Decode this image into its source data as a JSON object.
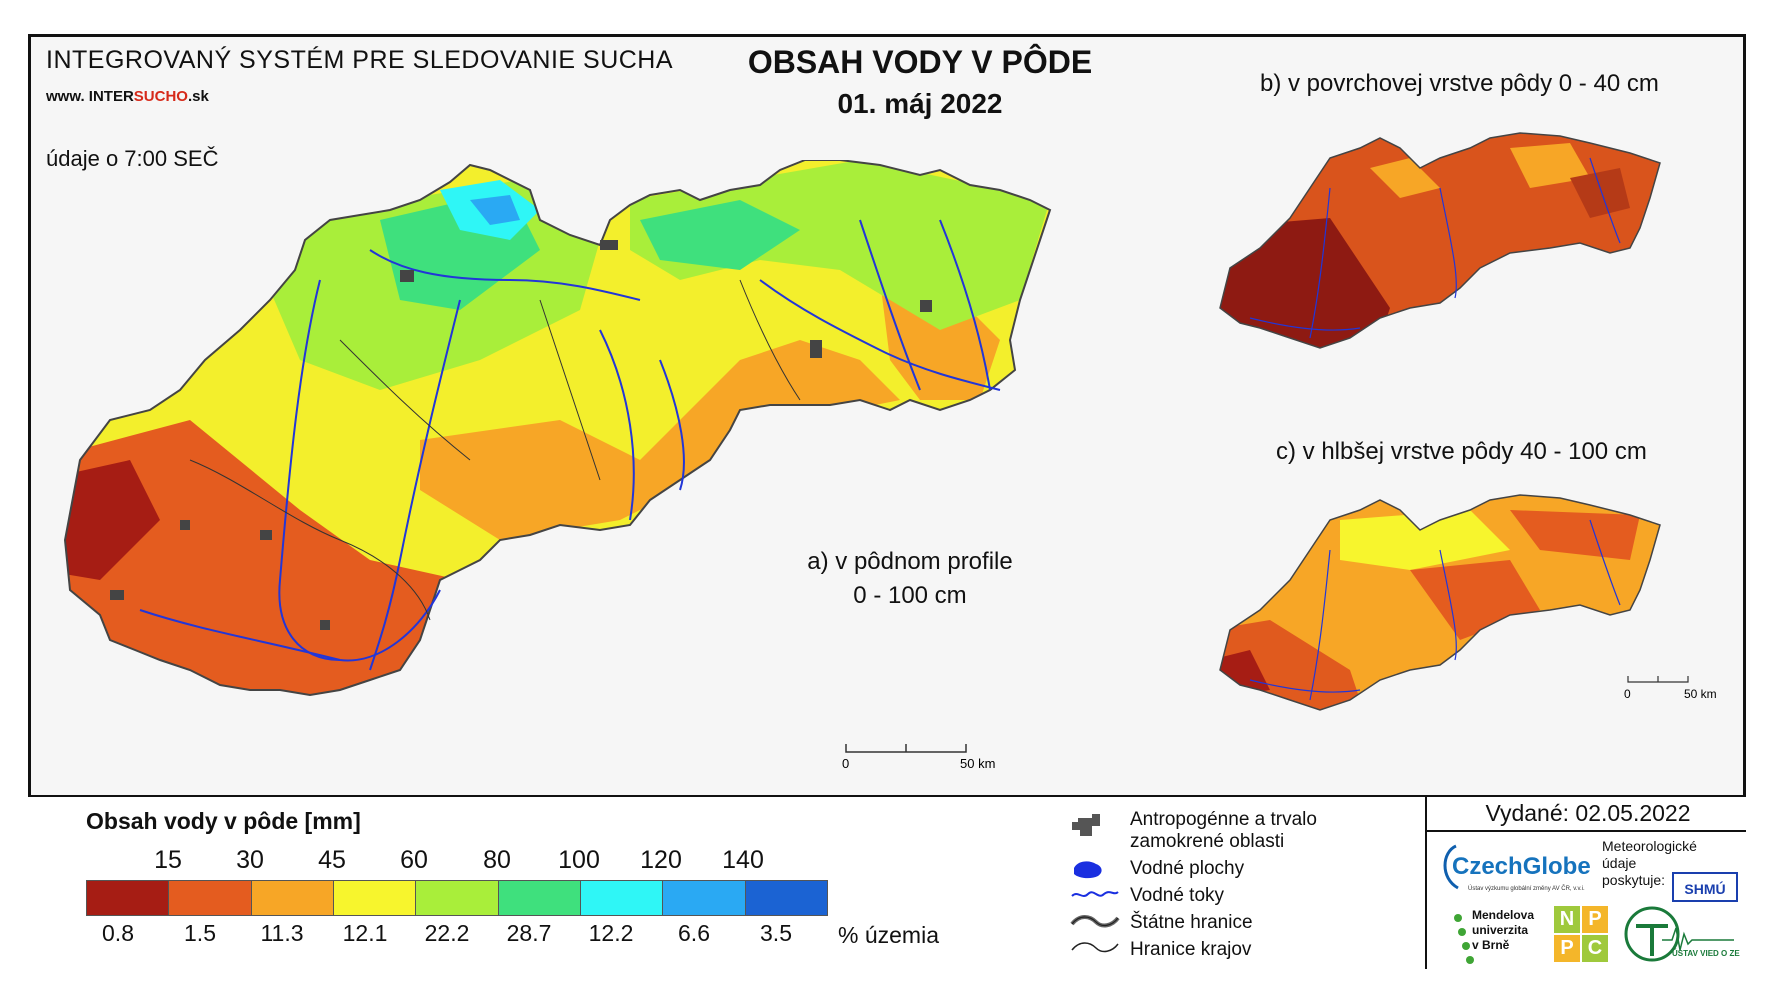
{
  "header": {
    "system_title": "INTEGROVANÝ SYSTÉM PRE SLEDOVANIE SUCHA",
    "website_prefix": "www. INTER",
    "website_highlight": "SUCHO",
    "website_suffix": ".sk",
    "time_note": "údaje o 7:00 SEČ",
    "main_title": "OBSAH VODY V PÔDE",
    "main_date": "01. máj 2022"
  },
  "panels": {
    "a_label_line1": "a) v pôdnom profile",
    "a_label_line2": "0 - 100 cm",
    "b_label": "b) v povrchovej vrstve pôdy 0 - 40 cm",
    "c_label": "c) v hlbšej vrstve pôdy 40 - 100 cm"
  },
  "scalebar": {
    "zero": "0",
    "max": "50 km"
  },
  "legend": {
    "title": "Obsah vody v pôde  [mm]",
    "thresholds": [
      "15",
      "30",
      "45",
      "60",
      "80",
      "100",
      "120",
      "140"
    ],
    "colors": [
      "#a61d14",
      "#e45c1f",
      "#f7a626",
      "#f7f52d",
      "#a9ee3a",
      "#3fe07d",
      "#2ff6f6",
      "#2aa9f3",
      "#1b63d3"
    ],
    "percentages": [
      "0.8",
      "1.5",
      "11.3",
      "12.1",
      "22.2",
      "28.7",
      "12.2",
      "6.6",
      "3.5"
    ],
    "percent_label": "% územia"
  },
  "symbols": {
    "anthropogenic_line1": "Antropogénne a trvalo",
    "anthropogenic_line2": "zamokrené oblasti",
    "water_bodies": "Vodné plochy",
    "water_streams": "Vodné toky",
    "state_border": "Štátne hranice",
    "region_border": "Hranice krajov"
  },
  "footer": {
    "issued": "Vydané: 02.05.2022",
    "czechglobe": "CzechGlobe",
    "czechglobe_sub": "Ústav výzkumu globální změny AV ČR, v.v.i.",
    "meteo_line1": "Meteorologické",
    "meteo_line2": "údaje",
    "meteo_line3": "poskytuje:",
    "shmu": "SHMÚ",
    "mendel_line1": "Mendelova",
    "mendel_line2": "univerzita",
    "mendel_line3": "v Brně",
    "npc": [
      "N",
      "P",
      "P",
      "C"
    ],
    "uvz": "ÚSTAV VIED O ZEMI"
  }
}
